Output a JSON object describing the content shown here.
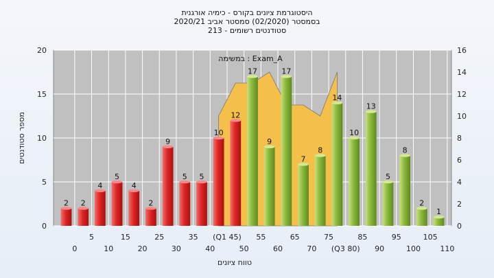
{
  "chart_data": {
    "type": "bar",
    "title_lines": [
      "היסטוגרמת ציונים בקורס - כימיה אורגנית",
      "בסמסטר  (02/2020)  סמסטר אביב 2020/21",
      "סטודנטים רשומים - 213"
    ],
    "xlabel": "טווח ציונים",
    "ylabel": "מספר סטודנטים",
    "ylim": [
      0,
      20
    ],
    "y_ticks": [
      0,
      5,
      10,
      15,
      20
    ],
    "y2lim": [
      0,
      16
    ],
    "y2_ticks": [
      0,
      2,
      4,
      6,
      8,
      10,
      12,
      14,
      16
    ],
    "x_tick_labels": [
      "0",
      "5",
      "10",
      "15",
      "20",
      "25",
      "30",
      "35",
      "40",
      "(Q1 45)",
      "50",
      "55",
      "60",
      "65",
      "70",
      "75",
      "(Q3 80)",
      "85",
      "90",
      "95",
      "100",
      "105",
      "110"
    ],
    "series": [
      {
        "values": [
          2,
          2,
          4,
          5,
          4,
          2,
          9,
          5,
          5,
          10,
          12,
          17,
          9,
          17,
          7,
          8,
          14,
          10,
          13,
          5,
          8,
          2,
          1
        ],
        "colors": [
          "#e03030",
          "#e03030",
          "#e03030",
          "#e03030",
          "#e03030",
          "#e03030",
          "#e03030",
          "#e03030",
          "#e03030",
          "#e03030",
          "#e03030",
          "#8ab83a",
          "#8ab83a",
          "#8ab83a",
          "#8ab83a",
          "#8ab83a",
          "#8ab83a",
          "#8ab83a",
          "#8ab83a",
          "#8ab83a",
          "#8ab83a",
          "#8ab83a",
          "#8ab83a"
        ]
      },
      {
        "name": "במשימה : Exam_A",
        "type": "area",
        "color": "#f5c04a",
        "axis": "right",
        "values": [
          null,
          null,
          null,
          null,
          null,
          null,
          null,
          null,
          null,
          10,
          13,
          13,
          14,
          11,
          11,
          10,
          14
        ]
      }
    ],
    "grid": true,
    "legend": "top-center"
  }
}
